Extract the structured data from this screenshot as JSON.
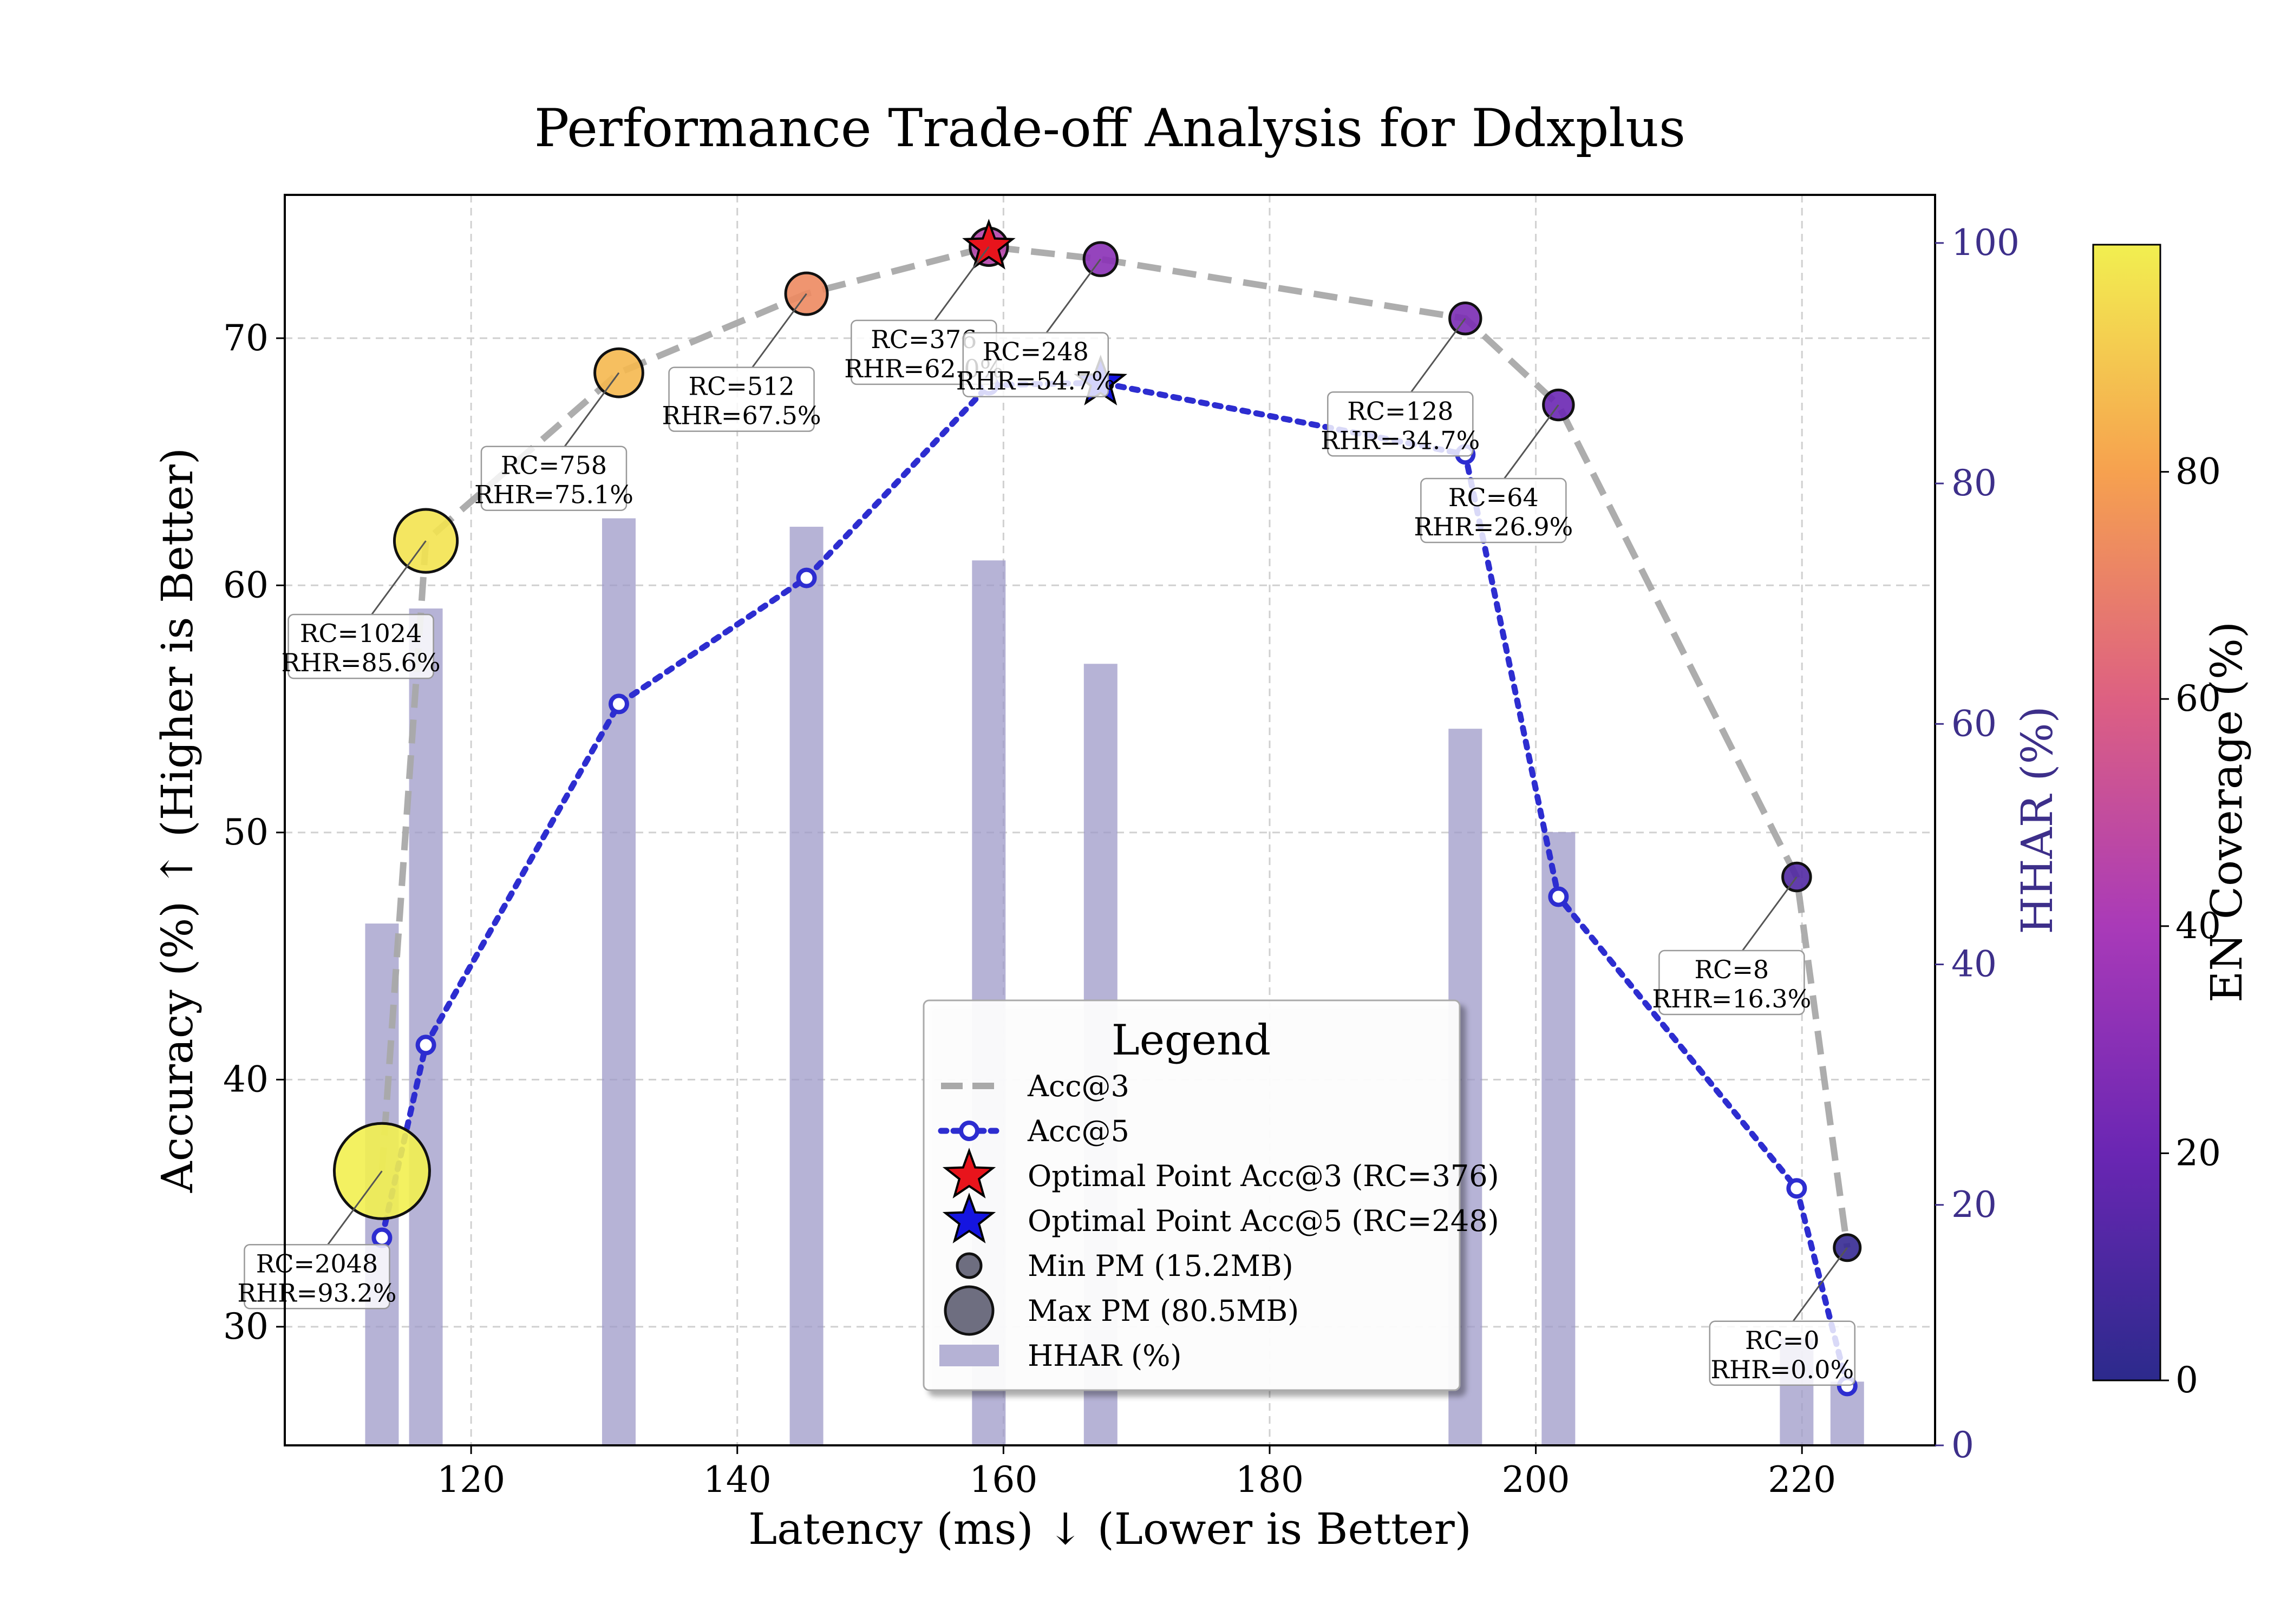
{
  "chart_data": {
    "type": "scatter",
    "title": "Performance Trade-off Analysis for Ddxplus",
    "xlabel": "Latency (ms) ↓ (Lower is Better)",
    "ylabel": "Accuracy (%) ↑ (Higher is Better)",
    "y2label": "HHAR (%)",
    "colorbar_label": "EN Coverage (%)",
    "xlim": [
      106,
      230
    ],
    "ylim": [
      25.2,
      75.8
    ],
    "y2lim": [
      0,
      104
    ],
    "colorbar_lim": [
      0,
      100
    ],
    "grid": true,
    "x_ticks": [
      120,
      140,
      160,
      180,
      200,
      220
    ],
    "y_ticks": [
      30,
      40,
      50,
      60,
      70
    ],
    "y2_ticks": [
      0,
      20,
      40,
      60,
      80,
      100
    ],
    "colorbar_ticks": [
      0,
      20,
      40,
      60,
      80
    ],
    "points": [
      {
        "latency": 113.3,
        "acc3": 36.3,
        "acc5": 33.6,
        "en_coverage": 100,
        "pm": 80.5,
        "label_rc": "RC=2048",
        "label_rhr": "RHR=93.2%"
      },
      {
        "latency": 116.6,
        "acc3": 61.8,
        "acc5": 41.4,
        "en_coverage": 97,
        "pm": 50,
        "label_rc": "RC=1024",
        "label_rhr": "RHR=85.6%"
      },
      {
        "latency": 131.1,
        "acc3": 68.6,
        "acc5": 55.2,
        "en_coverage": 86,
        "pm": 36,
        "label_rc": "RC=758",
        "label_rhr": "RHR=75.1%"
      },
      {
        "latency": 145.2,
        "acc3": 71.8,
        "acc5": 60.3,
        "en_coverage": 73,
        "pm": 30,
        "label_rc": "RC=512",
        "label_rhr": "RHR=67.5%"
      },
      {
        "latency": 158.9,
        "acc3": 73.7,
        "acc5": 68.1,
        "en_coverage": 45,
        "pm": 26,
        "label_rc": "RC=376",
        "label_rhr": "RHR=62.0%"
      },
      {
        "latency": 167.3,
        "acc3": 73.2,
        "acc5": 68.2,
        "en_coverage": 30,
        "pm": 22,
        "label_rc": "RC=248",
        "label_rhr": "RHR=54.7%"
      },
      {
        "latency": 194.7,
        "acc3": 70.8,
        "acc5": 65.3,
        "en_coverage": 25,
        "pm": 20,
        "label_rc": "RC=128",
        "label_rhr": "RHR=34.7%"
      },
      {
        "latency": 201.7,
        "acc3": 67.3,
        "acc5": 47.4,
        "en_coverage": 20,
        "pm": 19,
        "label_rc": "RC=64",
        "label_rhr": "RHR=26.9%"
      },
      {
        "latency": 219.6,
        "acc3": 48.2,
        "acc5": 35.6,
        "en_coverage": 12,
        "pm": 17,
        "label_rc": "RC=8",
        "label_rhr": "RHR=16.3%"
      },
      {
        "latency": 223.4,
        "acc3": 33.2,
        "acc5": 27.6,
        "en_coverage": 3,
        "pm": 15.2,
        "label_rc": "RC=0",
        "label_rhr": "RHR=0.0%"
      }
    ],
    "hhar_bars": [
      {
        "latency": 113.3,
        "value": 43.4
      },
      {
        "latency": 116.6,
        "value": 69.6
      },
      {
        "latency": 131.1,
        "value": 77.1
      },
      {
        "latency": 145.2,
        "value": 76.4
      },
      {
        "latency": 158.9,
        "value": 73.6
      },
      {
        "latency": 167.3,
        "value": 65.0
      },
      {
        "latency": 194.7,
        "value": 59.6
      },
      {
        "latency": 201.7,
        "value": 51.0
      },
      {
        "latency": 219.6,
        "value": 8.9
      },
      {
        "latency": 223.4,
        "value": 5.3
      }
    ],
    "optimal_acc3": {
      "latency": 158.9,
      "acc": 73.7
    },
    "optimal_acc5": {
      "latency": 167.3,
      "acc": 68.2
    },
    "series_colors": {
      "acc3": "#a9a9a9",
      "acc5": "#2d2dd0",
      "hhar": "#9e9ac8",
      "opt3": "#e8141c",
      "opt5": "#1515e0"
    },
    "legend": {
      "title": "Legend",
      "entries": [
        "Acc@3",
        "Acc@5",
        "Optimal Point Acc@3 (RC=376)",
        "Optimal Point Acc@5 (RC=248)",
        "Min PM (15.2MB)",
        "Max PM (80.5MB)",
        "HHAR (%)"
      ]
    }
  }
}
